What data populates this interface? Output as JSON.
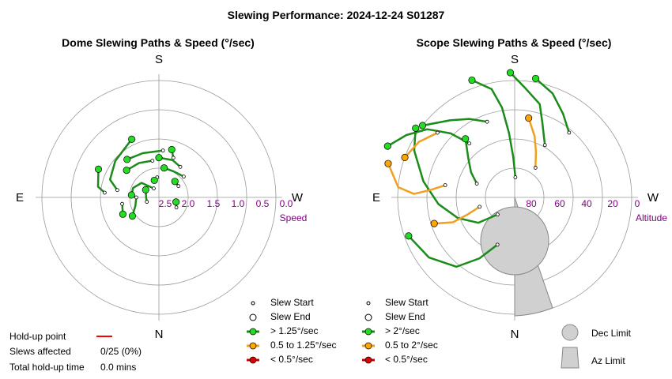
{
  "title": "Slewing Performance: 2024-12-24 S01287",
  "dome": {
    "subtitle": "Dome Slewing Paths & Speed (°/sec)",
    "directions": {
      "top": "S",
      "bottom": "N",
      "left": "E",
      "right": "W"
    },
    "axis_name": "Speed",
    "ticks": [
      "2.5",
      "2.0",
      "1.5",
      "1.0",
      "0.5",
      "0.0"
    ],
    "legend": [
      "Slew Start",
      "Slew End",
      "> 1.25°/sec",
      "0.5 to 1.25°/sec",
      "< 0.5°/sec"
    ]
  },
  "scope": {
    "subtitle": "Scope Slewing Paths & Speed (°/sec)",
    "directions": {
      "top": "S",
      "bottom": "N",
      "left": "E",
      "right": "W"
    },
    "axis_name": "Altitude",
    "ticks": [
      "80",
      "60",
      "40",
      "20",
      "0"
    ],
    "legend": [
      "Slew Start",
      "Slew End",
      "> 2°/sec",
      "0.5 to 2°/sec",
      "< 0.5°/sec"
    ],
    "limits": [
      "Dec Limit",
      "Az Limit"
    ]
  },
  "holdup": {
    "point_label": "Hold-up point",
    "affected_label": "Slews affected",
    "affected_value": "0/25 (0%)",
    "total_label": "Total hold-up time",
    "total_value": "0.0 mins"
  },
  "colors": {
    "fast": "#1a8c1a",
    "fast_marker": "#22dd22",
    "medium": "#f0a020",
    "medium_marker": "#ffa500",
    "slow": "#cc0000",
    "holdup": "#ff0000",
    "grid": "#999999",
    "tick": "#800080",
    "limit": "#d0d0d0"
  },
  "chart_data": [
    {
      "type": "scatter",
      "title": "Dome Slewing Paths & Speed (°/sec)",
      "radial_axis": {
        "label": "Speed",
        "ticks": [
          2.5,
          2.0,
          1.5,
          1.0,
          0.5,
          0.0
        ]
      },
      "angular_labels": [
        "S",
        "W",
        "N",
        "E"
      ],
      "slews": [
        {
          "speed": "fast",
          "path": [
            [
              150,
              2.45
            ],
            [
              130,
              2.2
            ],
            [
              110,
              2.1
            ],
            [
              95,
              2.1
            ]
          ]
        },
        {
          "speed": "fast",
          "path": [
            [
              170,
              1.9
            ],
            [
              150,
              1.85
            ],
            [
              130,
              1.8
            ]
          ]
        },
        {
          "speed": "fast",
          "path": [
            [
              185,
              1.7
            ],
            [
              160,
              1.7
            ],
            [
              140,
              1.65
            ]
          ]
        },
        {
          "speed": "fast",
          "path": [
            [
              200,
              1.8
            ],
            [
              195,
              1.65
            ]
          ]
        },
        {
          "speed": "fast",
          "path": [
            [
              215,
              1.9
            ],
            [
              200,
              1.85
            ],
            [
              180,
              1.85
            ]
          ]
        },
        {
          "speed": "fast",
          "path": [
            [
              230,
              2.0
            ],
            [
              210,
              2.05
            ],
            [
              190,
              2.05
            ]
          ]
        },
        {
          "speed": "fast",
          "path": [
            [
              240,
              2.2
            ],
            [
              225,
              2.2
            ]
          ]
        },
        {
          "speed": "fast",
          "path": [
            [
              100,
              1.8
            ],
            [
              110,
              1.6
            ],
            [
              130,
              1.5
            ],
            [
              155,
              1.35
            ]
          ]
        },
        {
          "speed": "fast",
          "path": [
            [
              95,
              1.55
            ],
            [
              100,
              1.4
            ],
            [
              115,
              1.3
            ]
          ]
        },
        {
          "speed": "fast",
          "path": [
            [
              90,
              2.2
            ],
            [
              70,
              2.15
            ],
            [
              55,
              2.0
            ]
          ]
        },
        {
          "speed": "fast",
          "path": [
            [
              80,
              1.9
            ],
            [
              65,
              1.85
            ]
          ]
        },
        {
          "speed": "fast",
          "path": [
            [
              70,
              2.4
            ],
            [
              90,
              2.4
            ],
            [
              120,
              2.35
            ]
          ]
        },
        {
          "speed": "fast",
          "path": [
            [
              300,
              2.25
            ],
            [
              285,
              2.3
            ]
          ]
        },
        {
          "speed": "fast",
          "path": [
            [
              175,
              2.25
            ],
            [
              165,
              2.3
            ]
          ]
        }
      ]
    },
    {
      "type": "scatter",
      "title": "Scope Slewing Paths & Speed (°/sec)",
      "radial_axis": {
        "label": "Altitude",
        "ticks": [
          80,
          60,
          40,
          20,
          0
        ]
      },
      "angular_labels": [
        "S",
        "W",
        "N",
        "E"
      ],
      "slews": [
        {
          "speed": "fast",
          "path": [
            [
              182,
              10
            ],
            [
              178,
              20
            ],
            [
              175,
              32
            ],
            [
              172,
              45
            ],
            [
              168,
              55
            ],
            [
              160,
              62
            ]
          ]
        },
        {
          "speed": "fast",
          "path": [
            [
              140,
              35
            ],
            [
              135,
              45
            ],
            [
              128,
              55
            ],
            [
              120,
              62
            ],
            [
              112,
              68
            ]
          ]
        },
        {
          "speed": "fast",
          "path": [
            [
              45,
              12
            ],
            [
              55,
              22
            ],
            [
              70,
              30
            ],
            [
              85,
              38
            ],
            [
              100,
              46
            ],
            [
              115,
              55
            ],
            [
              125,
              60
            ]
          ]
        },
        {
          "speed": "fast",
          "path": [
            [
              210,
              30
            ],
            [
              200,
              40
            ],
            [
              195,
              48
            ],
            [
              185,
              55
            ],
            [
              178,
              62
            ]
          ]
        },
        {
          "speed": "fast",
          "path": [
            [
              20,
              25
            ],
            [
              30,
              35
            ],
            [
              40,
              45
            ],
            [
              55,
              52
            ],
            [
              70,
              56
            ]
          ]
        },
        {
          "speed": "fast",
          "path": [
            [
              160,
              40
            ],
            [
              150,
              45
            ],
            [
              140,
              50
            ],
            [
              128,
              58
            ]
          ]
        },
        {
          "speed": "medium",
          "path": [
            [
              215,
              18
            ],
            [
              205,
              25
            ],
            [
              198,
              32
            ],
            [
              190,
              40
            ]
          ]
        },
        {
          "speed": "medium",
          "path": [
            [
              100,
              35
            ],
            [
              95,
              42
            ],
            [
              92,
              50
            ],
            [
              95,
              58
            ],
            [
              105,
              65
            ]
          ]
        },
        {
          "speed": "medium",
          "path": [
            [
              75,
              18
            ],
            [
              70,
              25
            ],
            [
              68,
              33
            ],
            [
              72,
              42
            ]
          ]
        },
        {
          "speed": "fast",
          "path": [
            [
              110,
              20
            ],
            [
              120,
              25
            ],
            [
              130,
              30
            ],
            [
              140,
              38
            ]
          ]
        },
        {
          "speed": "fast",
          "path": [
            [
              220,
              42
            ],
            [
              210,
              48
            ],
            [
              200,
              55
            ],
            [
              190,
              60
            ]
          ]
        },
        {
          "speed": "medium",
          "path": [
            [
              130,
              50
            ],
            [
              120,
              55
            ],
            [
              110,
              58
            ]
          ]
        }
      ],
      "limits": {
        "dec_limit": "Dec Limit",
        "az_limit": "Az Limit"
      }
    }
  ]
}
